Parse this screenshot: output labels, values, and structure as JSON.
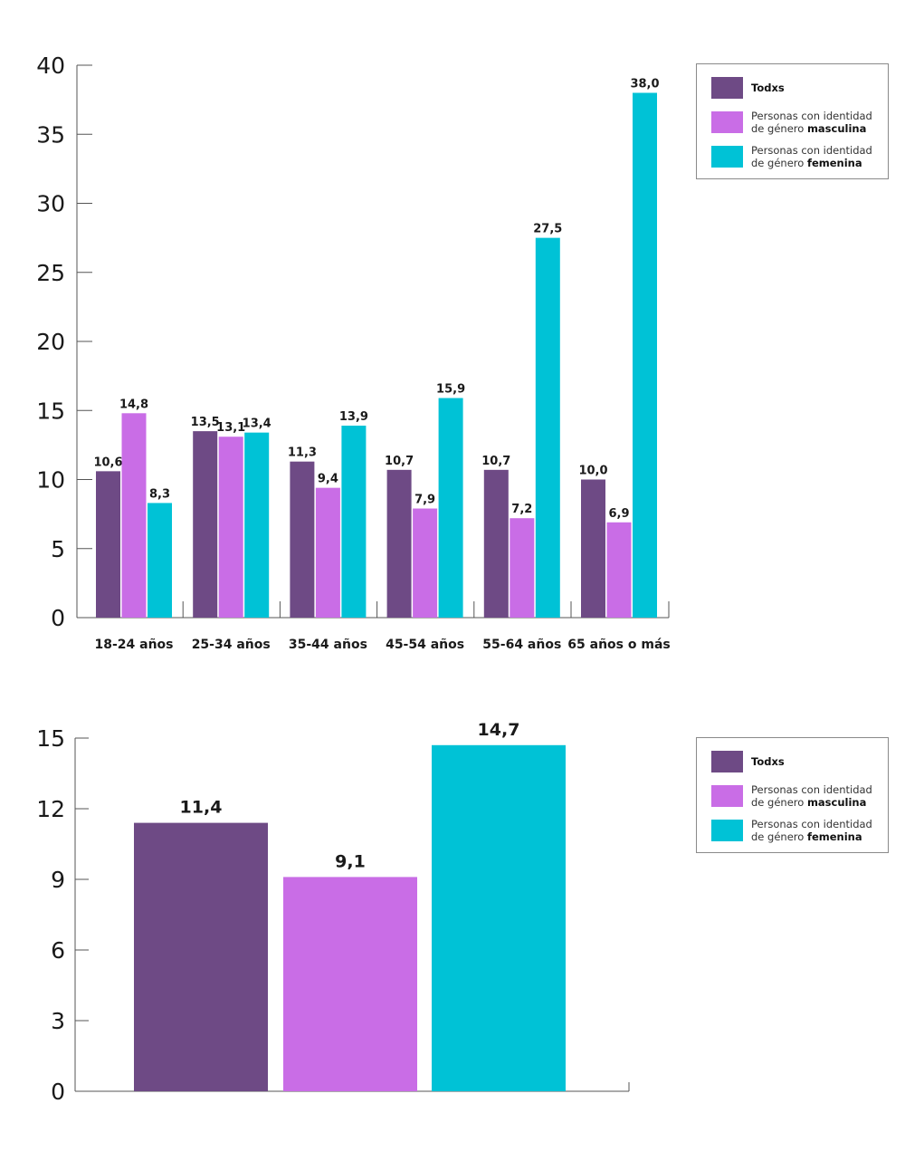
{
  "colors": {
    "todxs": "#6e4a85",
    "masculina": "#c96de6",
    "femenina": "#00c2d6"
  },
  "chart_data": [
    {
      "type": "bar",
      "categories": [
        "18-24 años",
        "25-34 años",
        "35-44 años",
        "45-54 años",
        "55-64 años",
        "65 años o más"
      ],
      "series": [
        {
          "name": "Todxs",
          "values": [
            10.6,
            13.5,
            11.3,
            10.7,
            10.7,
            10.0
          ],
          "labels": [
            "10,6",
            "13,5",
            "11,3",
            "10,7",
            "10,7",
            "10,0"
          ]
        },
        {
          "name": "Personas con identidad de género masculina",
          "values": [
            14.8,
            13.1,
            9.4,
            7.9,
            7.2,
            6.9
          ],
          "labels": [
            "14,8",
            "13,1",
            "9,4",
            "7,9",
            "7,2",
            "6,9"
          ]
        },
        {
          "name": "Personas con identidad de género femenina",
          "values": [
            8.3,
            13.4,
            13.9,
            15.9,
            27.5,
            38.0
          ],
          "labels": [
            "8,3",
            "13,4",
            "13,9",
            "15,9",
            "27,5",
            "38,0"
          ]
        }
      ],
      "ylim": [
        0,
        40
      ],
      "yticks": [
        "0",
        "5",
        "10",
        "15",
        "20",
        "25",
        "30",
        "35",
        "40"
      ],
      "legend_position": "top-right"
    },
    {
      "type": "bar",
      "categories": [
        "Todxs",
        "Personas con identidad de género masculina",
        "Personas con identidad de género femenina"
      ],
      "values": [
        11.4,
        9.1,
        14.7
      ],
      "labels": [
        "11,4",
        "9,1",
        "14,7"
      ],
      "ylim": [
        0,
        15
      ],
      "yticks": [
        "0",
        "3",
        "6",
        "9",
        "12",
        "15"
      ],
      "legend_position": "top-right"
    }
  ],
  "legend": {
    "todxs": "Todxs",
    "masc_line1": "Personas con identidad",
    "masc_pre": "de género ",
    "masc_bold": "masculina",
    "fem_line1": "Personas con identidad",
    "fem_pre": "de género ",
    "fem_bold": "femenina"
  }
}
